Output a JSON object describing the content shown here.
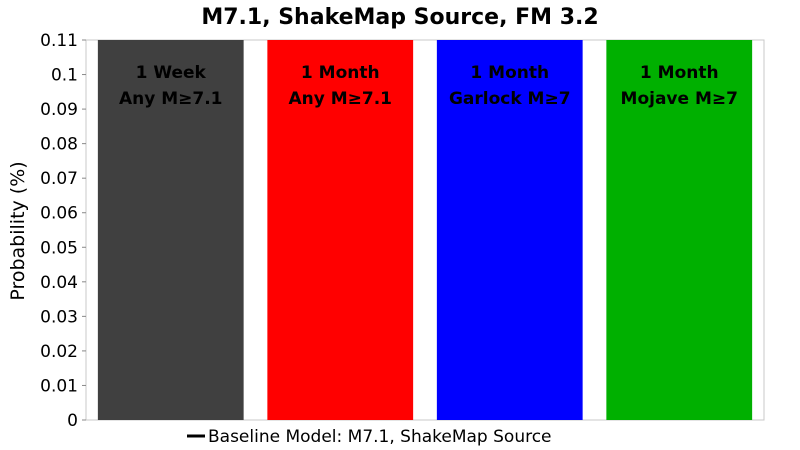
{
  "chart_data": {
    "type": "bar",
    "title": "M7.1, ShakeMap Source, FM 3.2",
    "ylabel": "Probability (%)",
    "xlabel": "",
    "ylim": [
      0,
      0.11
    ],
    "yticks": [
      "0",
      "0.01",
      "0.02",
      "0.03",
      "0.04",
      "0.05",
      "0.06",
      "0.07",
      "0.08",
      "0.09",
      "0.1",
      "0.11"
    ],
    "bars": [
      {
        "label_line1": "1 Week",
        "label_line2": "Any M≥7.1",
        "value": 0.11,
        "color": "#404040"
      },
      {
        "label_line1": "1 Month",
        "label_line2": "Any M≥7.1",
        "value": 0.11,
        "color": "#ff0000"
      },
      {
        "label_line1": "1 Month",
        "label_line2": "Garlock M≥7",
        "value": 0.11,
        "color": "#0000ff"
      },
      {
        "label_line1": "1 Month",
        "label_line2": "Mojave M≥7",
        "value": 0.11,
        "color": "#00b000"
      }
    ],
    "legend": {
      "label": "Baseline Model: M7.1, ShakeMap Source",
      "placement": "bottom"
    },
    "grid": false
  }
}
